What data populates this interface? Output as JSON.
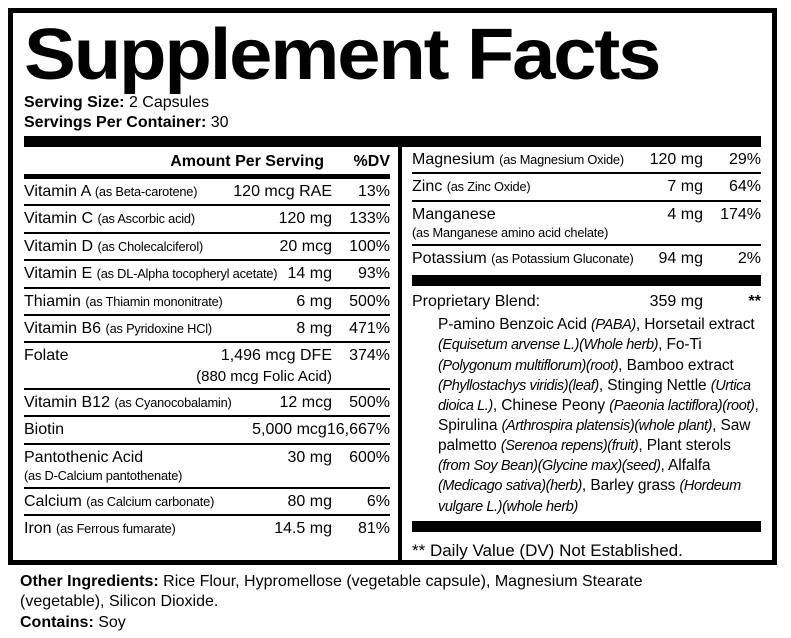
{
  "title": "Supplement Facts",
  "colors": {
    "ink": "#000000",
    "background": "#ffffff"
  },
  "serving": {
    "size_label": "Serving Size:",
    "size_value": "2 Capsules",
    "per_container_label": "Servings Per Container:",
    "per_container_value": "30"
  },
  "table": {
    "header": {
      "amount": "Amount Per Serving",
      "dv": "%DV"
    },
    "left_rows": [
      {
        "name": "Vitamin A",
        "sub": "(as Beta-carotene)",
        "amount": "120 mcg RAE",
        "dv": "13%"
      },
      {
        "name": "Vitamin C",
        "sub": "(as Ascorbic acid)",
        "amount": "120 mg",
        "dv": "133%"
      },
      {
        "name": "Vitamin D",
        "sub": "(as Cholecalciferol)",
        "amount": "20 mcg",
        "dv": "100%"
      },
      {
        "name": "Vitamin E",
        "sub": "(as DL-Alpha tocopheryl acetate)",
        "amount": "14 mg",
        "dv": "93%"
      },
      {
        "name": "Thiamin",
        "sub": "(as Thiamin mononitrate)",
        "amount": "6 mg",
        "dv": "500%"
      },
      {
        "name": "Vitamin B6",
        "sub": "(as Pyridoxine HCl)",
        "amount": "8 mg",
        "dv": "471%"
      },
      {
        "name": "Folate",
        "sub": "",
        "amount": "1,496 mcg DFE",
        "amount_sub": "(880 mcg Folic Acid)",
        "dv": "374%"
      },
      {
        "name": "Vitamin B12",
        "sub": "(as Cyanocobalamin)",
        "amount": "12 mcg",
        "dv": "500%"
      },
      {
        "name": "Biotin",
        "sub": "",
        "amount": "5,000 mcg",
        "dv": "16,667%"
      },
      {
        "name": "Pantothenic Acid",
        "sub": "(as  D-Calcium pantothenate)",
        "amount": "30 mg",
        "dv": "600%"
      },
      {
        "name": "Calcium",
        "sub": "(as Calcium carbonate)",
        "amount": "80 mg",
        "dv": "6%"
      },
      {
        "name": "Iron",
        "sub": "(as Ferrous fumarate)",
        "amount": "14.5 mg",
        "dv": "81%"
      }
    ],
    "right_rows": [
      {
        "name": "Magnesium",
        "sub": "(as Magnesium Oxide)",
        "amount": "120 mg",
        "dv": "29%"
      },
      {
        "name": "Zinc",
        "sub": "(as Zinc Oxide)",
        "amount": "7 mg",
        "dv": "64%"
      },
      {
        "name": "Manganese",
        "sub": "(as Manganese amino acid chelate)",
        "amount": "4 mg",
        "dv": "174%"
      },
      {
        "name": "Potassium",
        "sub": "(as Potassium Gluconate)",
        "amount": "94 mg",
        "dv": "2%"
      }
    ],
    "blend": {
      "label": "Proprietary Blend:",
      "amount": "359 mg",
      "dv": "**",
      "segments": [
        {
          "text": "P-amino Benzoic Acid ",
          "italic": false
        },
        {
          "text": "(PABA)",
          "italic": true
        },
        {
          "text": ", Horsetail extract ",
          "italic": false
        },
        {
          "text": "(Equisetum arvense L.)(Whole herb)",
          "italic": true
        },
        {
          "text": ", Fo-Ti ",
          "italic": false
        },
        {
          "text": "(Polygonum multiflorum)(root)",
          "italic": true
        },
        {
          "text": ", Bamboo extract ",
          "italic": false
        },
        {
          "text": "(Phyllostachys viridis)(leaf)",
          "italic": true
        },
        {
          "text": ", Stinging Nettle ",
          "italic": false
        },
        {
          "text": "(Urtica dioica L.)",
          "italic": true
        },
        {
          "text": ", Chinese Peony ",
          "italic": false
        },
        {
          "text": "(Paeonia lactiflora)(root)",
          "italic": true
        },
        {
          "text": ", Spirulina ",
          "italic": false
        },
        {
          "text": "(Arthrospira platensis)(whole plant)",
          "italic": true
        },
        {
          "text": ", Saw palmetto ",
          "italic": false
        },
        {
          "text": "(Serenoa repens)(fruit)",
          "italic": true
        },
        {
          "text": ", Plant sterols ",
          "italic": false
        },
        {
          "text": "(from Soy Bean)(Glycine max)(seed)",
          "italic": true
        },
        {
          "text": ", Alfalfa ",
          "italic": false
        },
        {
          "text": "(Medicago sativa)(herb)",
          "italic": true
        },
        {
          "text": ", Barley grass ",
          "italic": false
        },
        {
          "text": "(Hordeum vulgare L.)(whole herb)",
          "italic": true
        }
      ]
    },
    "footnote": "** Daily Value (DV) Not Established."
  },
  "footer": {
    "other_label": "Other Ingredients:",
    "other_text": "Rice Flour, Hypromellose (vegetable capsule), Magnesium Stearate (vegetable), Silicon Dioxide.",
    "contains_label": "Contains:",
    "contains_text": "Soy"
  }
}
